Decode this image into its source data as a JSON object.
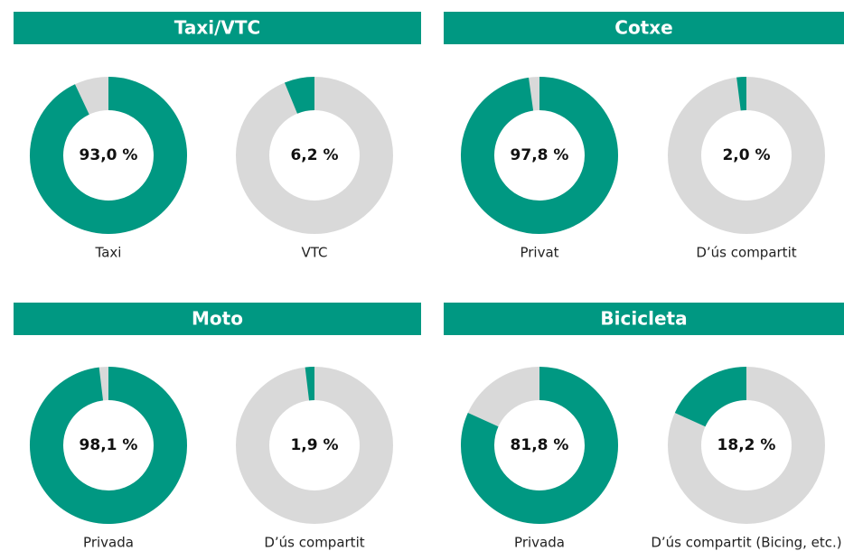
{
  "chart_data": [
    {
      "type": "donut",
      "title": "Taxi/VTC",
      "categories": [
        "Taxi",
        "VTC"
      ],
      "values": [
        93.0,
        6.2
      ],
      "value_labels": [
        "93,0 %",
        "6,2 %"
      ],
      "ylim": [
        0,
        100
      ],
      "color": "#009882",
      "track_color": "#d9d9d9"
    },
    {
      "type": "donut",
      "title": "Cotxe",
      "categories": [
        "Privat",
        "D’ús compartit"
      ],
      "values": [
        97.8,
        2.0
      ],
      "value_labels": [
        "97,8 %",
        "2,0 %"
      ],
      "ylim": [
        0,
        100
      ],
      "color": "#009882",
      "track_color": "#d9d9d9"
    },
    {
      "type": "donut",
      "title": "Moto",
      "categories": [
        "Privada",
        "D’ús compartit"
      ],
      "values": [
        98.1,
        1.9
      ],
      "value_labels": [
        "98,1 %",
        "1,9 %"
      ],
      "ylim": [
        0,
        100
      ],
      "color": "#009882",
      "track_color": "#d9d9d9"
    },
    {
      "type": "donut",
      "title": "Bicicleta",
      "categories": [
        "Privada",
        "D’ús compartit (Bicing, etc.)"
      ],
      "values": [
        81.8,
        18.2
      ],
      "value_labels": [
        "81,8 %",
        "18,2 %"
      ],
      "ylim": [
        0,
        100
      ],
      "color": "#009882",
      "track_color": "#d9d9d9"
    }
  ]
}
